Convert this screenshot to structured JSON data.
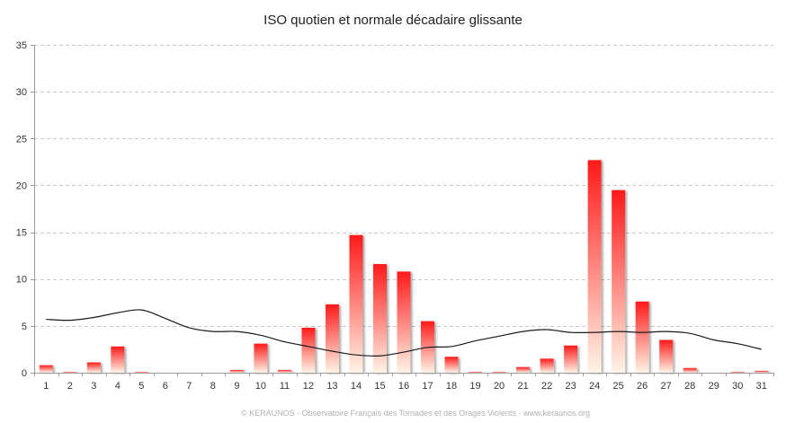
{
  "chart_data": {
    "type": "bar",
    "title": "ISO quotien et normale décadaire glissante",
    "xlabel": "",
    "ylabel": "",
    "categories": [
      "1",
      "2",
      "3",
      "4",
      "5",
      "6",
      "7",
      "8",
      "9",
      "10",
      "11",
      "12",
      "13",
      "14",
      "15",
      "16",
      "17",
      "18",
      "19",
      "20",
      "21",
      "22",
      "23",
      "24",
      "25",
      "26",
      "27",
      "28",
      "29",
      "30",
      "31"
    ],
    "ylim": [
      0,
      35
    ],
    "yticks": [
      0,
      5,
      10,
      15,
      20,
      25,
      30,
      35
    ],
    "grid": true,
    "legend": "none",
    "series": [
      {
        "type": "bar",
        "values": [
          0.8,
          0.1,
          1.1,
          2.8,
          0.1,
          0.0,
          0.0,
          0.0,
          0.3,
          3.1,
          0.3,
          4.8,
          7.3,
          14.7,
          11.6,
          10.8,
          5.5,
          1.7,
          0.1,
          0.1,
          0.6,
          1.5,
          2.9,
          22.7,
          19.5,
          7.6,
          3.5,
          0.5,
          0.0,
          0.1,
          0.2
        ],
        "color_top": "#ff1a1a",
        "color_bottom": "#fff4e6"
      },
      {
        "type": "line",
        "values": [
          5.7,
          5.6,
          5.9,
          6.4,
          6.7,
          5.8,
          4.8,
          4.4,
          4.4,
          4.0,
          3.3,
          2.8,
          2.3,
          1.9,
          1.8,
          2.2,
          2.7,
          2.8,
          3.4,
          3.9,
          4.4,
          4.6,
          4.3,
          4.3,
          4.4,
          4.3,
          4.4,
          4.2,
          3.5,
          3.1,
          2.5
        ],
        "color": "#1a1a1a"
      }
    ]
  },
  "credit": "© KERAUNOS - Observatoire Français des Tornades et des Orages Violents - www.keraunos.org"
}
